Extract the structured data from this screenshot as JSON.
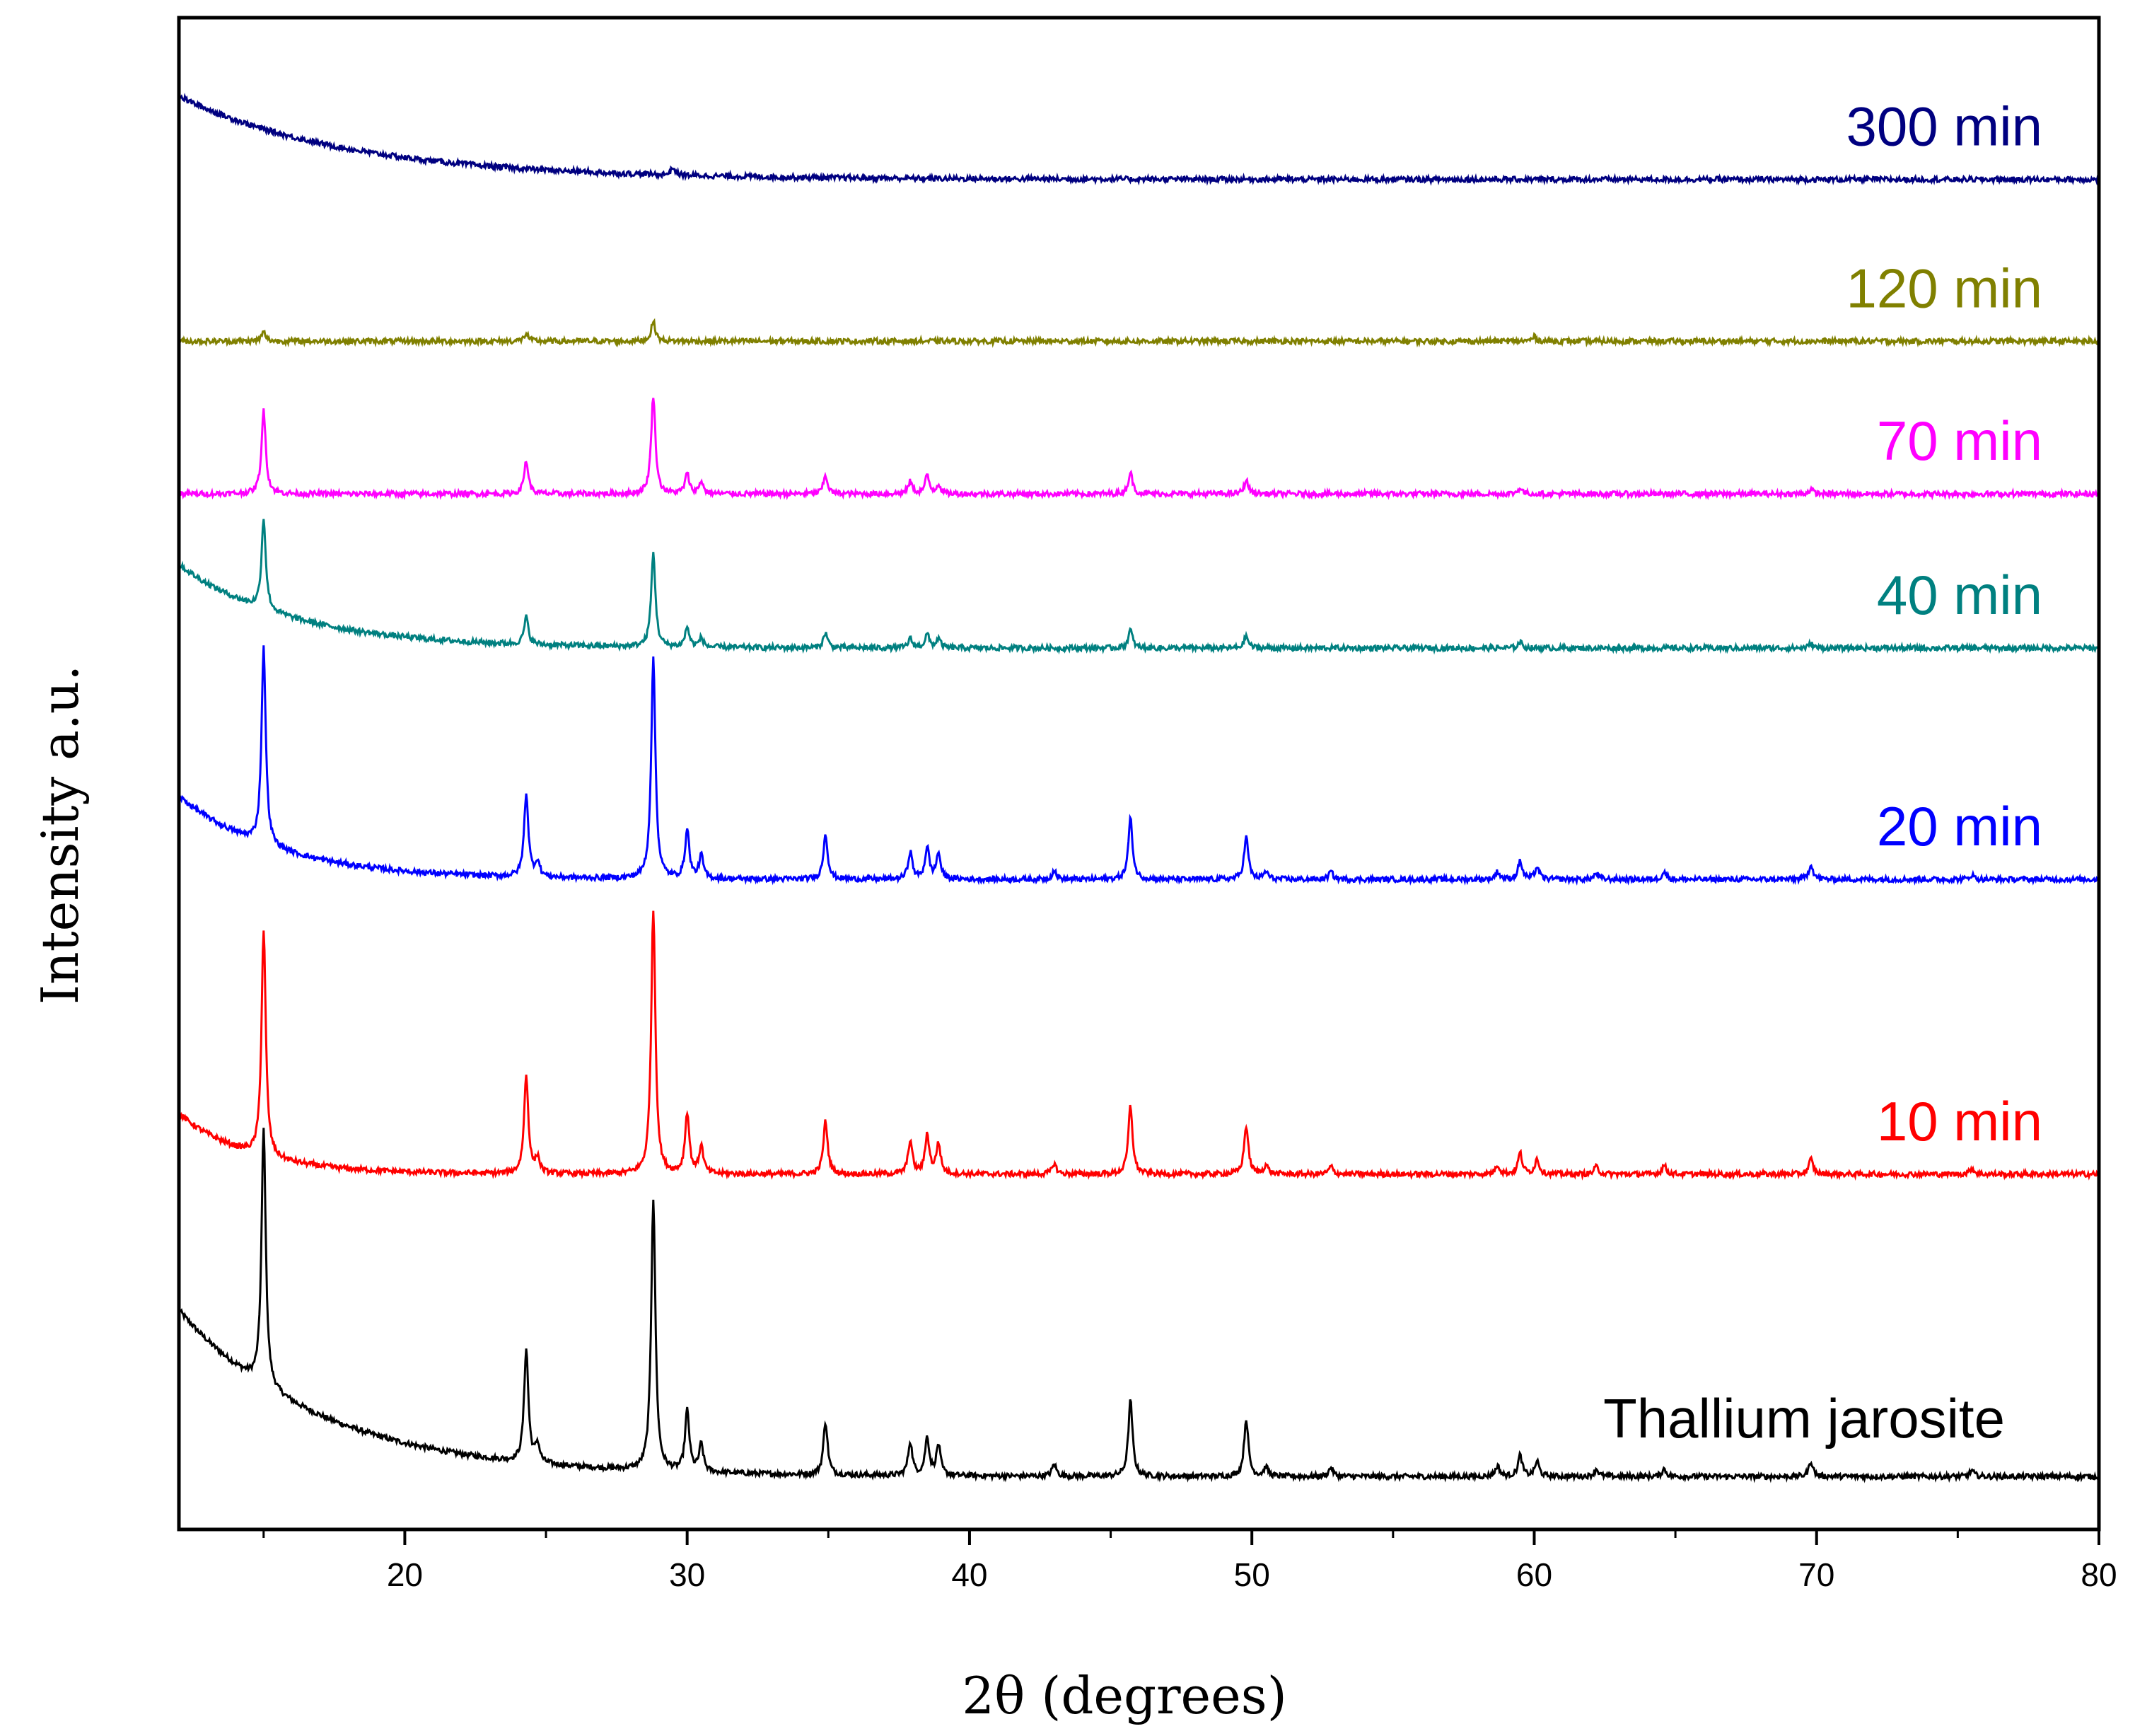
{
  "chart_data": {
    "type": "line",
    "title": "",
    "xlabel": "2θ (degrees)",
    "ylabel": "Intensity a.u.",
    "xlim": [
      12,
      80
    ],
    "ylim": [
      0,
      100
    ],
    "xticks": [
      20,
      30,
      40,
      50,
      60,
      70,
      80
    ],
    "yticks_visible": false,
    "grid": false,
    "legend": "inline labels at right end of each trace",
    "peak_positions_2theta": [
      15.0,
      24.3,
      24.7,
      28.8,
      30.0,
      30.5,
      34.9,
      37.9,
      38.5,
      38.9,
      43.0,
      45.7,
      49.8,
      50.5,
      52.8,
      58.7,
      59.5,
      60.1,
      62.2,
      64.6,
      69.8,
      75.5
    ],
    "series": [
      {
        "name": "Thallium jarosite",
        "color": "#000000",
        "label_color": "#000000",
        "baseline_at_80": 3.5,
        "amorphous_hump": 11.0,
        "hump_decay_deg": 5.0,
        "peaks": [
          [
            15.0,
            17.0
          ],
          [
            24.3,
            7.5
          ],
          [
            24.7,
            1.2
          ],
          [
            28.8,
            18.0
          ],
          [
            30.0,
            4.0
          ],
          [
            30.5,
            1.8
          ],
          [
            34.9,
            3.5
          ],
          [
            37.9,
            2.2
          ],
          [
            38.5,
            2.5
          ],
          [
            38.9,
            2.0
          ],
          [
            43.0,
            0.8
          ],
          [
            45.7,
            5.0
          ],
          [
            49.8,
            3.8
          ],
          [
            50.5,
            0.6
          ],
          [
            52.8,
            0.6
          ],
          [
            58.7,
            0.7
          ],
          [
            59.5,
            1.4
          ],
          [
            60.1,
            1.0
          ],
          [
            62.2,
            0.5
          ],
          [
            64.6,
            0.5
          ],
          [
            69.8,
            1.0
          ],
          [
            75.5,
            0.4
          ]
        ]
      },
      {
        "name": "10 min",
        "color": "#ff0000",
        "label_color": "#ff0000",
        "baseline_at_80": 23.5,
        "amorphous_hump": 4.0,
        "hump_decay_deg": 2.5,
        "peaks": [
          [
            15.0,
            15.0
          ],
          [
            24.3,
            6.5
          ],
          [
            24.7,
            1.0
          ],
          [
            28.8,
            17.5
          ],
          [
            30.0,
            4.0
          ],
          [
            30.5,
            1.8
          ],
          [
            34.9,
            3.5
          ],
          [
            37.9,
            2.2
          ],
          [
            38.5,
            2.6
          ],
          [
            38.9,
            2.0
          ],
          [
            43.0,
            0.7
          ],
          [
            45.7,
            4.5
          ],
          [
            49.8,
            3.2
          ],
          [
            50.5,
            0.6
          ],
          [
            52.8,
            0.5
          ],
          [
            58.7,
            0.6
          ],
          [
            59.5,
            1.4
          ],
          [
            60.1,
            1.0
          ],
          [
            62.2,
            0.5
          ],
          [
            64.6,
            0.6
          ],
          [
            69.8,
            1.0
          ],
          [
            75.5,
            0.4
          ]
        ]
      },
      {
        "name": "20 min",
        "color": "#0000ff",
        "label_color": "#0000ff",
        "baseline_at_80": 43.0,
        "amorphous_hump": 5.5,
        "hump_decay_deg": 3.5,
        "peaks": [
          [
            15.0,
            13.0
          ],
          [
            24.3,
            5.5
          ],
          [
            24.7,
            1.0
          ],
          [
            28.8,
            14.5
          ],
          [
            30.0,
            3.2
          ],
          [
            30.5,
            1.5
          ],
          [
            34.9,
            3.0
          ],
          [
            37.9,
            1.8
          ],
          [
            38.5,
            2.1
          ],
          [
            38.9,
            1.7
          ],
          [
            43.0,
            0.6
          ],
          [
            45.7,
            4.0
          ],
          [
            49.8,
            2.8
          ],
          [
            50.5,
            0.5
          ],
          [
            52.8,
            0.5
          ],
          [
            58.7,
            0.5
          ],
          [
            59.5,
            1.2
          ],
          [
            60.1,
            0.8
          ],
          [
            62.2,
            0.4
          ],
          [
            64.6,
            0.5
          ],
          [
            69.8,
            1.0
          ],
          [
            75.5,
            0.3
          ]
        ]
      },
      {
        "name": "40 min",
        "color": "#008080",
        "label_color": "#008080",
        "baseline_at_80": 58.3,
        "amorphous_hump": 5.5,
        "hump_decay_deg": 4.0,
        "peaks": [
          [
            15.0,
            6.0
          ],
          [
            24.3,
            1.8
          ],
          [
            28.8,
            6.2
          ],
          [
            30.0,
            1.3
          ],
          [
            30.5,
            0.6
          ],
          [
            34.9,
            1.0
          ],
          [
            37.9,
            0.6
          ],
          [
            38.5,
            0.9
          ],
          [
            38.9,
            0.6
          ],
          [
            45.7,
            1.2
          ],
          [
            49.8,
            0.8
          ],
          [
            59.5,
            0.4
          ],
          [
            69.8,
            0.3
          ]
        ]
      },
      {
        "name": "70 min",
        "color": "#ff00ff",
        "label_color": "#ff00ff",
        "baseline_at_80": 68.5,
        "amorphous_hump": 0.0,
        "hump_decay_deg": 1.0,
        "peaks": [
          [
            15.0,
            5.5
          ],
          [
            24.3,
            2.2
          ],
          [
            28.8,
            6.5
          ],
          [
            30.0,
            1.3
          ],
          [
            30.5,
            0.8
          ],
          [
            34.9,
            1.2
          ],
          [
            37.9,
            0.8
          ],
          [
            38.5,
            1.2
          ],
          [
            38.9,
            0.6
          ],
          [
            45.7,
            1.4
          ],
          [
            49.8,
            0.9
          ],
          [
            59.5,
            0.4
          ],
          [
            69.8,
            0.3
          ]
        ]
      },
      {
        "name": "120 min",
        "color": "#808000",
        "label_color": "#808000",
        "baseline_at_80": 78.6,
        "amorphous_hump": 0.0,
        "hump_decay_deg": 1.0,
        "peaks": [
          [
            15.0,
            0.6
          ],
          [
            24.3,
            0.5
          ],
          [
            28.8,
            1.3
          ],
          [
            60.0,
            0.3
          ]
        ]
      },
      {
        "name": "300 min",
        "color": "#000080",
        "label_color": "#000080",
        "baseline_at_80": 89.3,
        "amorphous_hump": 5.5,
        "hump_decay_deg": 6.0,
        "peaks": [
          [
            29.5,
            0.5
          ]
        ]
      }
    ]
  }
}
